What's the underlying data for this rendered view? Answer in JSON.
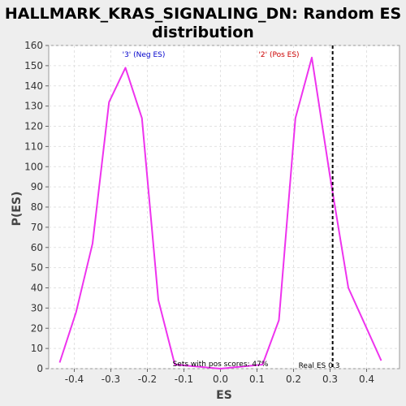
{
  "chart_data": {
    "type": "line",
    "title_lines": [
      "HALLMARK_KRAS_SIGNALING_DN: Random ES",
      "distribution"
    ],
    "xlabel": "ES",
    "ylabel": "P(ES)",
    "xlim": [
      -0.47,
      0.49
    ],
    "ylim": [
      0,
      160
    ],
    "xticks": [
      -0.4,
      -0.3,
      -0.2,
      -0.1,
      0.0,
      0.1,
      0.2,
      0.3,
      0.4
    ],
    "xtick_labels": [
      "-0.4",
      "-0.3",
      "-0.2",
      "-0.1",
      "0.0",
      "0.1",
      "0.2",
      "0.3",
      "0.4"
    ],
    "yticks": [
      0,
      10,
      20,
      30,
      40,
      50,
      60,
      70,
      80,
      90,
      100,
      110,
      120,
      130,
      140,
      150,
      160
    ],
    "grid": true,
    "series": [
      {
        "color": "#ee33ee",
        "x": [
          -0.44,
          -0.395,
          -0.35,
          -0.305,
          -0.26,
          -0.215,
          -0.17,
          -0.125,
          0.0,
          0.115,
          0.16,
          0.205,
          0.25,
          0.3,
          0.35,
          0.395,
          0.44
        ],
        "y": [
          3,
          28,
          62,
          132,
          149,
          124,
          34,
          2,
          0,
          2,
          24,
          124,
          154,
          95,
          40,
          22,
          4
        ]
      }
    ],
    "real_es": 0.307,
    "real_es_color": "#000000",
    "annotations": {
      "neg_label": "'3' (Neg ES)",
      "neg_color": "#0000cc",
      "pos_label": "'2' (Pos ES)",
      "pos_color": "#cc0000",
      "pos_scores_text": "Sets with pos scores: 47%",
      "real_es_text": "Real ES 0.3"
    }
  }
}
